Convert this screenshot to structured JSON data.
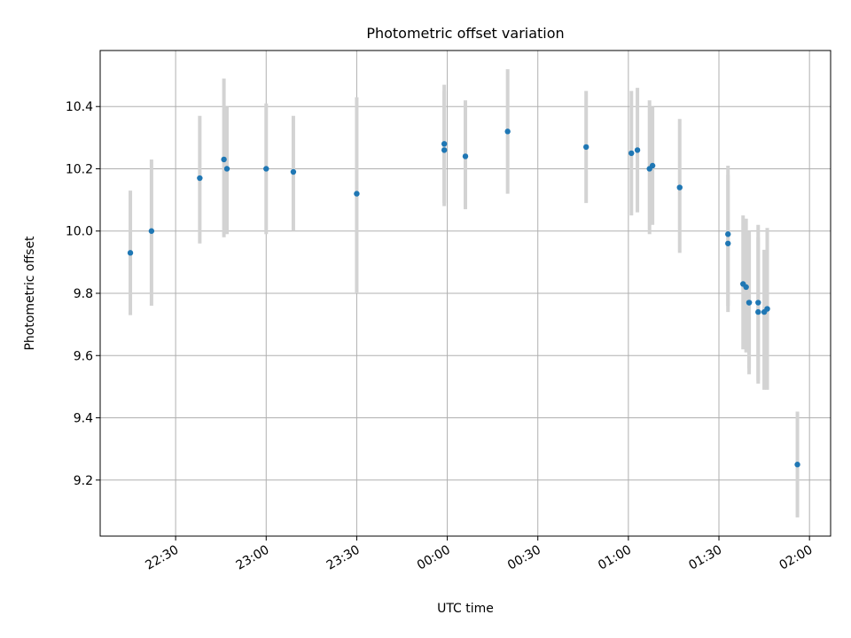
{
  "chart_data": {
    "type": "scatter",
    "title": "Photometric offset variation",
    "xlabel": "UTC time",
    "ylabel": "Photometric offset",
    "x_ticks": [
      "22:30",
      "23:00",
      "23:30",
      "00:00",
      "00:30",
      "01:00",
      "01:30",
      "02:00"
    ],
    "y_ticks": [
      "9.2",
      "9.4",
      "9.6",
      "9.8",
      "10.0",
      "10.2",
      "10.4"
    ],
    "xlim": [
      "22:05",
      "02:07"
    ],
    "ylim": [
      9.02,
      10.58
    ],
    "grid": true,
    "error_bars": true,
    "series": [
      {
        "points": [
          {
            "t": "22:15",
            "y": 9.93,
            "lo": 9.73,
            "hi": 10.13
          },
          {
            "t": "22:22",
            "y": 10.0,
            "lo": 9.76,
            "hi": 10.23
          },
          {
            "t": "22:38",
            "y": 10.17,
            "lo": 9.96,
            "hi": 10.37
          },
          {
            "t": "22:46",
            "y": 10.23,
            "lo": 9.98,
            "hi": 10.49
          },
          {
            "t": "22:47",
            "y": 10.2,
            "lo": 9.99,
            "hi": 10.4
          },
          {
            "t": "23:00",
            "y": 10.2,
            "lo": 9.99,
            "hi": 10.41
          },
          {
            "t": "23:09",
            "y": 10.19,
            "lo": 10.0,
            "hi": 10.37
          },
          {
            "t": "23:30",
            "y": 10.12,
            "lo": 9.8,
            "hi": 10.43
          },
          {
            "t": "23:59",
            "y": 10.28,
            "lo": 10.09,
            "hi": 10.47
          },
          {
            "t": "23:59",
            "y": 10.26,
            "lo": 10.08,
            "hi": 10.45
          },
          {
            "t": "00:06",
            "y": 10.24,
            "lo": 10.07,
            "hi": 10.42
          },
          {
            "t": "00:20",
            "y": 10.32,
            "lo": 10.12,
            "hi": 10.52
          },
          {
            "t": "00:46",
            "y": 10.27,
            "lo": 10.09,
            "hi": 10.45
          },
          {
            "t": "01:01",
            "y": 10.25,
            "lo": 10.05,
            "hi": 10.45
          },
          {
            "t": "01:03",
            "y": 10.26,
            "lo": 10.06,
            "hi": 10.46
          },
          {
            "t": "01:07",
            "y": 10.2,
            "lo": 9.99,
            "hi": 10.42
          },
          {
            "t": "01:08",
            "y": 10.21,
            "lo": 10.02,
            "hi": 10.4
          },
          {
            "t": "01:17",
            "y": 10.14,
            "lo": 9.93,
            "hi": 10.36
          },
          {
            "t": "01:33",
            "y": 9.99,
            "lo": 9.76,
            "hi": 10.21
          },
          {
            "t": "01:33",
            "y": 9.96,
            "lo": 9.74,
            "hi": 10.18
          },
          {
            "t": "01:38",
            "y": 9.83,
            "lo": 9.62,
            "hi": 10.05
          },
          {
            "t": "01:39",
            "y": 9.82,
            "lo": 9.61,
            "hi": 10.04
          },
          {
            "t": "01:40",
            "y": 9.77,
            "lo": 9.54,
            "hi": 10.0
          },
          {
            "t": "01:40",
            "y": 9.77,
            "lo": 9.56,
            "hi": 9.99
          },
          {
            "t": "01:43",
            "y": 9.77,
            "lo": 9.52,
            "hi": 10.02
          },
          {
            "t": "01:43",
            "y": 9.74,
            "lo": 9.51,
            "hi": 9.98
          },
          {
            "t": "01:45",
            "y": 9.74,
            "lo": 9.49,
            "hi": 9.94
          },
          {
            "t": "01:46",
            "y": 9.75,
            "lo": 9.49,
            "hi": 10.01
          },
          {
            "t": "01:56",
            "y": 9.25,
            "lo": 9.08,
            "hi": 9.42
          }
        ],
        "marker_color": "#1f77b4",
        "errorbar_color": "#d3d3d3"
      }
    ]
  }
}
